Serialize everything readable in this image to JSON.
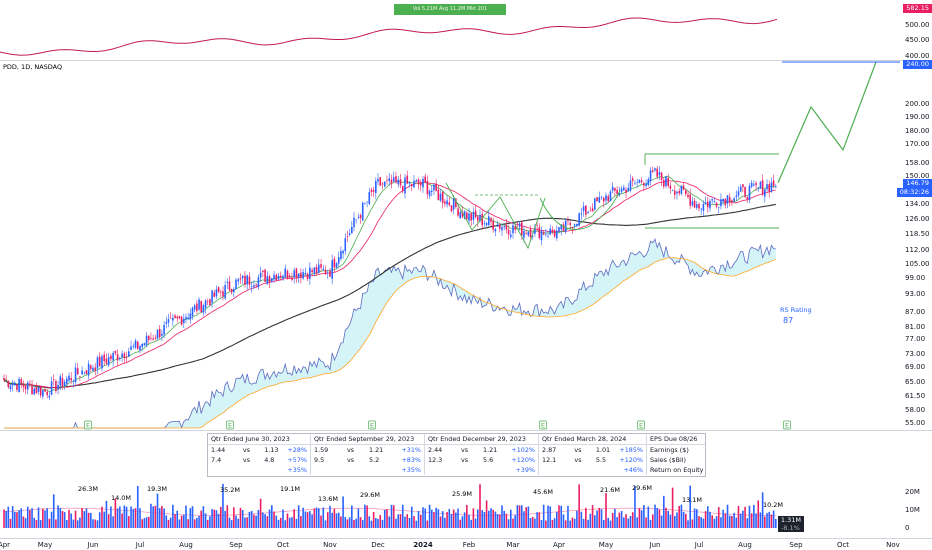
{
  "symbol_label": "PDD, 1D, NASDAQ",
  "top_bar_text": "Vol 5.21M  Avg 11.2M  Mkt 201",
  "top_axis": {
    "labels": [
      "500.00",
      "450.00",
      "400.00"
    ],
    "price_tag": "582.15"
  },
  "price_axis": {
    "labels": [
      "200.00",
      "190.00",
      "180.00",
      "170.00",
      "158.00",
      "150.00",
      "134.00",
      "126.00",
      "118.50",
      "112.00",
      "105.00",
      "99.00",
      "93.00",
      "87.00",
      "81.00",
      "77.00",
      "73.00",
      "69.00",
      "65.00",
      "61.50",
      "58.00",
      "55.00"
    ]
  },
  "target_tag": "240.00",
  "last_price_tag": "146.79",
  "countdown_tag": "08:32:26",
  "rs_rating": {
    "label": "RS Rating",
    "value": "87"
  },
  "earnings_marker": "E",
  "x_axis": {
    "labels": [
      "Apr",
      "May",
      "Jun",
      "Jul",
      "Aug",
      "Sep",
      "Oct",
      "Nov",
      "Dec",
      "2024",
      "Feb",
      "Mar",
      "Apr",
      "May",
      "Jun",
      "Jul",
      "Aug",
      "Sep",
      "Oct",
      "Nov"
    ]
  },
  "volume_axis": {
    "labels": [
      "20M",
      "10M",
      "0"
    ],
    "current_tag": "1.31M",
    "current_sub": "-8.1%"
  },
  "volume_labels": [
    "26.3M",
    "14.0M",
    "19.3M",
    "35.2M",
    "19.1M",
    "13.6M",
    "29.6M",
    "25.9M",
    "45.6M",
    "21.6M",
    "29.6M",
    "13.1M",
    "10.2M"
  ],
  "fundamentals": {
    "headers": [
      "Qtr Ended June 30, 2023",
      "Qtr Ended September 29, 2023",
      "Qtr Ended December 29, 2023",
      "Qtr Ended March 28, 2024",
      "EPS Due 08/26"
    ],
    "rows": [
      {
        "q1": [
          "1.44",
          "vs",
          "1.13",
          "+28%"
        ],
        "q2": [
          "1.59",
          "vs",
          "1.21",
          "+31%"
        ],
        "q3": [
          "2.44",
          "vs",
          "1.21",
          "+102%"
        ],
        "q4": [
          "2.87",
          "vs",
          "1.01",
          "+185%"
        ],
        "label": "Earnings ($)"
      },
      {
        "q1": [
          "7.4",
          "vs",
          "4.8",
          "+57%"
        ],
        "q2": [
          "9.5",
          "vs",
          "5.2",
          "+83%"
        ],
        "q3": [
          "12.3",
          "vs",
          "5.6",
          "+120%"
        ],
        "q4": [
          "12.1",
          "vs",
          "5.5",
          "+120%"
        ],
        "label": "Sales ($Bil)"
      },
      {
        "q1": [
          "",
          "",
          "",
          "+35%"
        ],
        "q2": [
          "",
          "",
          "",
          "+35%"
        ],
        "q3": [
          "",
          "",
          "",
          "+39%"
        ],
        "q4": [
          "",
          "",
          "",
          "+46%"
        ],
        "label": "Return on Equity"
      }
    ]
  },
  "colors": {
    "up": "#2962ff",
    "down": "#e91e63",
    "sma50": "#4caf50",
    "sma21": "#e91e63",
    "sma200": "#000000",
    "projection": "#4caf50",
    "target_line": "#2962ff"
  },
  "chart_data": {
    "type": "candlestick",
    "symbol": "PDD",
    "interval": "1D",
    "x": [
      "2023-04",
      "2023-05",
      "2023-06",
      "2023-07",
      "2023-08",
      "2023-09",
      "2023-10",
      "2023-11",
      "2023-12",
      "2024-01",
      "2024-02",
      "2024-03",
      "2024-04",
      "2024-05",
      "2024-06",
      "2024-07",
      "2024-08"
    ],
    "close": [
      66,
      63,
      70,
      76,
      86,
      98,
      102,
      103,
      146,
      146,
      128,
      122,
      120,
      139,
      152,
      134,
      147
    ],
    "projection": {
      "x": [
        "2024-08",
        "2024-09",
        "2024-10",
        "2024-11"
      ],
      "y": [
        147,
        200,
        168,
        240
      ]
    },
    "target_level": 240,
    "base_levels": {
      "top": 163,
      "bottom": 121
    },
    "rs_rating": 87,
    "volume_peaks_millions": [
      26.3,
      14.0,
      19.3,
      35.2,
      19.1,
      13.6,
      29.6,
      25.9,
      45.6,
      21.6,
      29.6,
      13.1,
      10.2
    ],
    "scale": "log"
  }
}
